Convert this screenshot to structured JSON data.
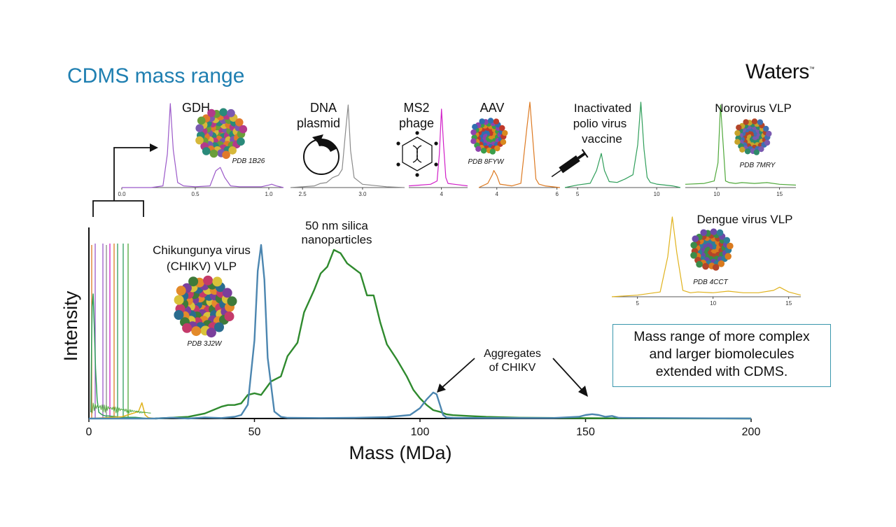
{
  "header": {
    "title": "CDMS mass range",
    "brand": "Waters",
    "brand_tm": "™"
  },
  "callout": {
    "lines": [
      "Mass range of more complex",
      "and larger biomolecules",
      "extended with CDMS."
    ]
  },
  "labels": {
    "silica": [
      "50 nm silica",
      "nanoparticles"
    ],
    "chikv": [
      "Chikungunya virus",
      "(CHIKV) VLP"
    ],
    "chikv_pdb": "PDB 3J2W",
    "aggregates": [
      "Aggregates",
      "of CHIKV"
    ]
  },
  "colors": {
    "title": "#1f7fb1",
    "chikv": "#4c86b0",
    "silica": "#2f8a2e",
    "gdh": "#9b59c9",
    "plasmid": "#8a8a8a",
    "ms2": "#d11fc8",
    "aav": "#dd7a22",
    "polio": "#2f9e5a",
    "norovirus": "#4fa83a",
    "dengue": "#e0b21c",
    "callout_border": "#3a97ad"
  },
  "chart_data": [
    {
      "type": "line",
      "xlabel": "Mass (MDa)",
      "ylabel": "Intensity",
      "xlim": [
        0,
        200
      ],
      "xticks": [
        0,
        50,
        100,
        150,
        200
      ],
      "series": [
        {
          "x": [
            0,
            10,
            20,
            25,
            30,
            35,
            40,
            44,
            46,
            48,
            50,
            51,
            52,
            53,
            54,
            56,
            58,
            60,
            70,
            80,
            90,
            97,
            100,
            102,
            104,
            105,
            106,
            107,
            108,
            110,
            120,
            140,
            148,
            150,
            152,
            154,
            156,
            158,
            160,
            200
          ],
          "y": [
            0,
            0,
            0,
            0.005,
            0,
            0.006,
            0.003,
            0.01,
            0.02,
            0.08,
            0.45,
            0.85,
            1.0,
            0.8,
            0.35,
            0.04,
            0.01,
            0.004,
            0.003,
            0.004,
            0.008,
            0.02,
            0.06,
            0.11,
            0.15,
            0.14,
            0.08,
            0.02,
            0.006,
            0.004,
            0.003,
            0.003,
            0.01,
            0.02,
            0.025,
            0.02,
            0.01,
            0.015,
            0.004,
            0
          ]
        },
        {
          "x": [
            20,
            25,
            30,
            35,
            40,
            42,
            44,
            46,
            48,
            50,
            52,
            55,
            58,
            60,
            63,
            65,
            68,
            70,
            72,
            74,
            76,
            78,
            80,
            82,
            84,
            86,
            88,
            90,
            93,
            96,
            98,
            100,
            102,
            104,
            106,
            108,
            110,
            115,
            120,
            130,
            150,
            170,
            200
          ],
          "y": [
            0,
            0.005,
            0.01,
            0.03,
            0.07,
            0.08,
            0.08,
            0.09,
            0.14,
            0.15,
            0.14,
            0.22,
            0.25,
            0.37,
            0.45,
            0.63,
            0.76,
            0.86,
            0.9,
            1.0,
            0.98,
            0.92,
            0.89,
            0.86,
            0.73,
            0.73,
            0.57,
            0.44,
            0.35,
            0.25,
            0.17,
            0.12,
            0.08,
            0.05,
            0.04,
            0.025,
            0.02,
            0.015,
            0.01,
            0.005,
            0.002,
            0.001,
            0
          ]
        },
        {
          "x": [
            0.6,
            0.8,
            1,
            1.3,
            1.6,
            2,
            2.5,
            3,
            4,
            5,
            6,
            8,
            10,
            14,
            18
          ],
          "y": [
            0.05,
            0.6,
            0.9,
            1.0,
            0.75,
            0.4,
            0.15,
            0.05,
            0.03,
            0.02,
            0.02,
            0.015,
            0.01,
            0.01,
            0
          ]
        },
        {
          "x": [
            0,
            10,
            15,
            16,
            17,
            18,
            20
          ],
          "y": [
            0,
            0.01,
            0.04,
            0.09,
            0.02,
            0.005,
            0
          ]
        }
      ]
    },
    {
      "type": "line",
      "title": "GDH",
      "pdb": "PDB 1B26",
      "xlim": [
        0,
        1.1
      ],
      "xticks": [
        "0.0",
        "0.5",
        "1.0"
      ],
      "series": [
        {
          "x": [
            0,
            0.2,
            0.28,
            0.31,
            0.33,
            0.35,
            0.38,
            0.42,
            0.5,
            0.6,
            0.64,
            0.67,
            0.7,
            0.74,
            0.8,
            0.95,
            1.0,
            1.02,
            1.05,
            1.1
          ],
          "y": [
            0,
            0,
            0.02,
            0.4,
            1.0,
            0.45,
            0.06,
            0.02,
            0.01,
            0.02,
            0.2,
            0.24,
            0.12,
            0.02,
            0.01,
            0.01,
            0.03,
            0.04,
            0.02,
            0
          ]
        }
      ]
    },
    {
      "type": "line",
      "title": "DNA plasmid",
      "xlim": [
        2.4,
        3.35
      ],
      "xticks": [
        "2.5",
        "3.0"
      ],
      "series": [
        {
          "x": [
            2.4,
            2.5,
            2.6,
            2.65,
            2.7,
            2.75,
            2.8,
            2.83,
            2.86,
            2.88,
            2.9,
            2.93,
            3.0,
            3.2,
            3.35
          ],
          "y": [
            0,
            0.01,
            0.02,
            0.05,
            0.06,
            0.12,
            0.15,
            0.22,
            0.7,
            1.0,
            0.45,
            0.12,
            0.04,
            0.01,
            0
          ]
        }
      ]
    },
    {
      "type": "line",
      "title": "MS2 phage",
      "xlim": [
        2.5,
        5.2
      ],
      "xticks": [
        "4"
      ],
      "series": [
        {
          "x": [
            2.5,
            3,
            3.5,
            3.8,
            3.9,
            4.0,
            4.1,
            4.2,
            4.3,
            4.6,
            5.2
          ],
          "y": [
            0.02,
            0.03,
            0.04,
            0.08,
            0.4,
            0.95,
            0.5,
            0.12,
            0.05,
            0.04,
            0.02
          ]
        }
      ]
    },
    {
      "type": "line",
      "title": "AAV",
      "pdb": "PDB 8FYW",
      "xlim": [
        3.4,
        6.1
      ],
      "xticks": [
        "4",
        "6"
      ],
      "series": [
        {
          "x": [
            3.4,
            3.7,
            3.85,
            3.9,
            4.0,
            4.1,
            4.5,
            4.8,
            5.0,
            5.1,
            5.2,
            5.3,
            5.4,
            5.6,
            6.1
          ],
          "y": [
            0,
            0.05,
            0.15,
            0.2,
            0.14,
            0.04,
            0.02,
            0.05,
            0.7,
            1.0,
            0.55,
            0.1,
            0.04,
            0.02,
            0
          ]
        }
      ]
    },
    {
      "type": "line",
      "title": "Inactivated polio virus vaccine",
      "xlim": [
        4.2,
        11.5
      ],
      "xticks": [
        "5",
        "10"
      ],
      "series": [
        {
          "x": [
            4.2,
            5,
            5.8,
            6.2,
            6.5,
            6.7,
            7.0,
            7.5,
            8.0,
            8.5,
            8.8,
            9.0,
            9.2,
            9.4,
            9.6,
            10,
            11,
            11.5
          ],
          "y": [
            0,
            0.03,
            0.05,
            0.2,
            0.4,
            0.2,
            0.07,
            0.06,
            0.1,
            0.15,
            0.5,
            1.0,
            0.45,
            0.12,
            0.06,
            0.04,
            0.02,
            0
          ]
        }
      ]
    },
    {
      "type": "line",
      "title": "Norovirus VLP",
      "pdb": "PDB 7MRY",
      "xlim": [
        7.5,
        16.3
      ],
      "xticks": [
        "10",
        "15"
      ],
      "series": [
        {
          "x": [
            7.5,
            9,
            9.8,
            10.1,
            10.3,
            10.5,
            10.7,
            11.0,
            11.5,
            12,
            13,
            14,
            15,
            16.3
          ],
          "y": [
            0.04,
            0.05,
            0.08,
            0.3,
            1.0,
            0.55,
            0.08,
            0.06,
            0.05,
            0.06,
            0.05,
            0.06,
            0.04,
            0.03
          ]
        }
      ]
    },
    {
      "type": "line",
      "title": "Dengue virus VLP",
      "pdb": "PDB 4CCT",
      "xlim": [
        3.3,
        15.8
      ],
      "xticks": [
        "5",
        "10",
        "15"
      ],
      "series": [
        {
          "x": [
            3.3,
            5,
            6.5,
            7.0,
            7.3,
            7.6,
            8.0,
            8.5,
            9,
            10,
            11,
            12,
            13,
            14,
            14.4,
            15,
            15.8
          ],
          "y": [
            0,
            0.02,
            0.06,
            0.5,
            1.0,
            0.55,
            0.08,
            0.05,
            0.06,
            0.05,
            0.07,
            0.05,
            0.05,
            0.08,
            0.12,
            0.06,
            0.02
          ]
        }
      ]
    }
  ]
}
